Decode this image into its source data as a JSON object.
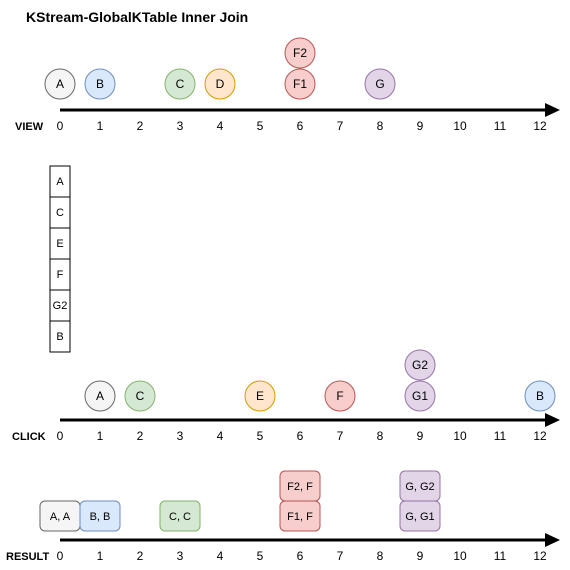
{
  "title": "KStream-GlobalKTable Inner Join",
  "colors": {
    "white": {
      "fill": "#f5f5f5",
      "stroke": "#666666"
    },
    "blue": {
      "fill": "#dae8fc",
      "stroke": "#6c8ebf"
    },
    "green": {
      "fill": "#d5e8d4",
      "stroke": "#82b366"
    },
    "orange": {
      "fill": "#ffe6cc",
      "stroke": "#d79b00"
    },
    "red": {
      "fill": "#f8cecc",
      "stroke": "#b85450"
    },
    "purple": {
      "fill": "#e1d5e7",
      "stroke": "#9673a6"
    },
    "plain": {
      "fill": "#ffffff",
      "stroke": "#000000"
    }
  },
  "ticks": [
    "0",
    "1",
    "2",
    "3",
    "4",
    "5",
    "6",
    "7",
    "8",
    "9",
    "10",
    "11",
    "12"
  ],
  "view": {
    "label": "VIEW",
    "events": [
      {
        "text": "A",
        "t": 0,
        "level": 0,
        "color": "white"
      },
      {
        "text": "B",
        "t": 1,
        "level": 0,
        "color": "blue"
      },
      {
        "text": "C",
        "t": 3,
        "level": 0,
        "color": "green"
      },
      {
        "text": "D",
        "t": 4,
        "level": 0,
        "color": "orange"
      },
      {
        "text": "F1",
        "t": 6,
        "level": 0,
        "color": "red"
      },
      {
        "text": "F2",
        "t": 6,
        "level": 1,
        "color": "red"
      },
      {
        "text": "G",
        "t": 8,
        "level": 0,
        "color": "purple"
      }
    ]
  },
  "table": {
    "cells": [
      "A",
      "C",
      "E",
      "F",
      "G2",
      "B"
    ]
  },
  "click": {
    "label": "CLICK",
    "events": [
      {
        "text": "A",
        "t": 1,
        "level": 0,
        "color": "white"
      },
      {
        "text": "C",
        "t": 2,
        "level": 0,
        "color": "green"
      },
      {
        "text": "E",
        "t": 5,
        "level": 0,
        "color": "orange"
      },
      {
        "text": "F",
        "t": 7,
        "level": 0,
        "color": "red"
      },
      {
        "text": "G1",
        "t": 9,
        "level": 0,
        "color": "purple"
      },
      {
        "text": "G2",
        "t": 9,
        "level": 1,
        "color": "purple"
      },
      {
        "text": "B",
        "t": 12,
        "level": 0,
        "color": "blue"
      }
    ]
  },
  "result": {
    "label": "RESULT",
    "events": [
      {
        "text": "A, A",
        "t": 0,
        "level": 0,
        "color": "white"
      },
      {
        "text": "B, B",
        "t": 1,
        "level": 0,
        "color": "blue"
      },
      {
        "text": "C, C",
        "t": 3,
        "level": 0,
        "color": "green"
      },
      {
        "text": "F1, F",
        "t": 6,
        "level": 0,
        "color": "red"
      },
      {
        "text": "F2, F",
        "t": 6,
        "level": 1,
        "color": "red"
      },
      {
        "text": "G, G1",
        "t": 9,
        "level": 0,
        "color": "purple"
      },
      {
        "text": "G, G2",
        "t": 9,
        "level": 1,
        "color": "purple"
      }
    ]
  }
}
